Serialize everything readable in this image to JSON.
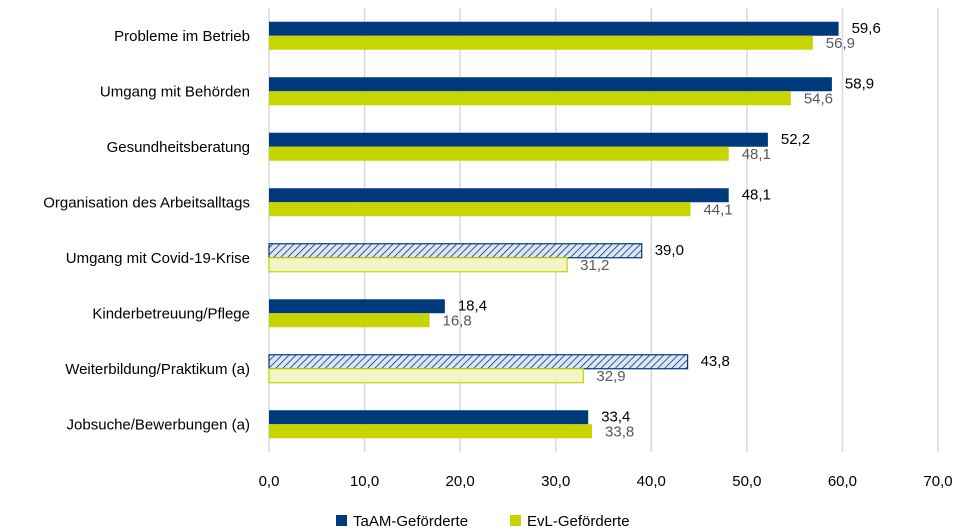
{
  "chart_data": {
    "type": "bar",
    "orientation": "horizontal",
    "categories": [
      "Probleme im Betrieb",
      "Umgang mit Behörden",
      "Gesundheitsberatung",
      "Organisation des Arbeitsalltags",
      "Umgang mit Covid-19-Krise",
      "Kinderbetreuung/Pflege",
      "Weiterbildung/Praktikum (a)",
      "Jobsuche/Bewerbungen (a)"
    ],
    "series": [
      {
        "name": "TaAM-Geförderte",
        "color": "#003a7d",
        "values": [
          59.6,
          58.9,
          52.2,
          48.1,
          39.0,
          18.4,
          43.8,
          33.4
        ],
        "labels": [
          "59,6",
          "58,9",
          "52,2",
          "48,1",
          "39,0",
          "18,4",
          "43,8",
          "33,4"
        ]
      },
      {
        "name": "EvL-Geförderte",
        "color": "#c8d400",
        "values": [
          56.9,
          54.6,
          48.1,
          44.1,
          31.2,
          16.8,
          32.9,
          33.8
        ],
        "labels": [
          "56,9",
          "54,6",
          "48,1",
          "44,1",
          "31,2",
          "16,8",
          "32,9",
          "33,8"
        ]
      }
    ],
    "hatched_categories": [
      "Umgang mit Covid-19-Krise",
      "Weiterbildung/Praktikum (a)"
    ],
    "xlim": [
      0,
      70
    ],
    "x_ticks": [
      0,
      10,
      20,
      30,
      40,
      50,
      60,
      70
    ],
    "x_tick_labels": [
      "0,0",
      "10,0",
      "20,0",
      "30,0",
      "40,0",
      "50,0",
      "60,0",
      "70,0"
    ],
    "grid": "vertical",
    "legend_position": "bottom",
    "title": "",
    "xlabel": "",
    "ylabel": ""
  }
}
